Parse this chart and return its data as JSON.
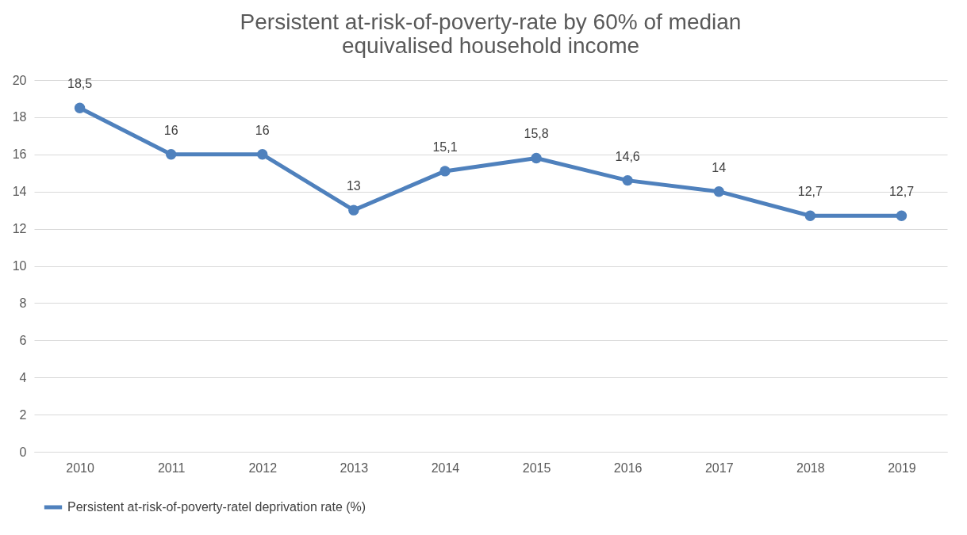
{
  "chart_data": {
    "type": "line",
    "title": "Persistent at-risk-of-poverty-rate by 60% of median equivalised household income",
    "categories": [
      "2010",
      "2011",
      "2012",
      "2013",
      "2014",
      "2015",
      "2016",
      "2017",
      "2018",
      "2019"
    ],
    "series": [
      {
        "name": "Persistent at-risk-of-poverty-ratel deprivation rate (%)",
        "color": "#4f81bd",
        "values": [
          18.5,
          16,
          16,
          13,
          15.1,
          15.8,
          14.6,
          14,
          12.7,
          12.7
        ],
        "value_labels": [
          "18,5",
          "16",
          "16",
          "13",
          "15,1",
          "15,8",
          "14,6",
          "14",
          "12,7",
          "12,7"
        ]
      }
    ],
    "ylim": [
      0,
      20
    ],
    "yticks": [
      0,
      2,
      4,
      6,
      8,
      10,
      12,
      14,
      16,
      18,
      20
    ],
    "grid": "y",
    "legend": "bottom",
    "marker": "circle",
    "line_style": "solid"
  }
}
